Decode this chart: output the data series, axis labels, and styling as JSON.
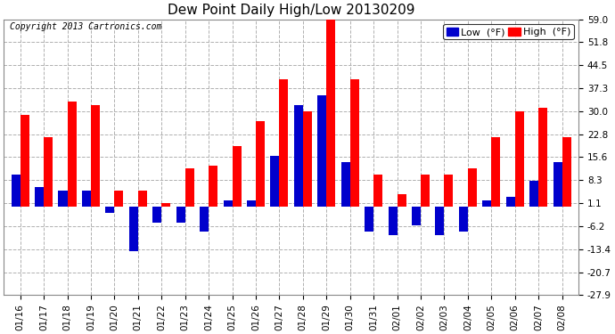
{
  "title": "Dew Point Daily High/Low 20130209",
  "copyright": "Copyright 2013 Cartronics.com",
  "legend_low": "Low  (°F)",
  "legend_high": "High  (°F)",
  "dates": [
    "01/16",
    "01/17",
    "01/18",
    "01/19",
    "01/20",
    "01/21",
    "01/22",
    "01/23",
    "01/24",
    "01/25",
    "01/26",
    "01/27",
    "01/28",
    "01/29",
    "01/30",
    "01/31",
    "02/01",
    "02/02",
    "02/03",
    "02/04",
    "02/05",
    "02/06",
    "02/07",
    "02/08"
  ],
  "high_vals": [
    29.0,
    22.0,
    33.0,
    32.0,
    5.0,
    5.0,
    1.0,
    12.0,
    13.0,
    19.0,
    27.0,
    40.0,
    30.0,
    59.0,
    40.0,
    10.0,
    4.0,
    10.0,
    10.0,
    12.0,
    22.0,
    30.0,
    31.0,
    22.0
  ],
  "low_vals": [
    10.0,
    6.0,
    5.0,
    5.0,
    -2.0,
    -14.0,
    -5.0,
    -5.0,
    -8.0,
    2.0,
    2.0,
    16.0,
    32.0,
    35.0,
    14.0,
    -8.0,
    -9.0,
    -6.0,
    -9.0,
    -8.0,
    2.0,
    3.0,
    8.0,
    14.0
  ],
  "ylim": [
    -27.9,
    59.0
  ],
  "yticks": [
    59.0,
    51.8,
    44.5,
    37.3,
    30.0,
    22.8,
    15.6,
    8.3,
    1.1,
    -6.2,
    -13.4,
    -20.7,
    -27.9
  ],
  "bar_width": 0.38,
  "high_color": "#ff0000",
  "low_color": "#0000cc",
  "bg_color": "#ffffff",
  "grid_color": "#b0b0b0",
  "title_fontsize": 11,
  "copyright_fontsize": 7,
  "tick_fontsize": 7.5,
  "legend_fontsize": 8
}
